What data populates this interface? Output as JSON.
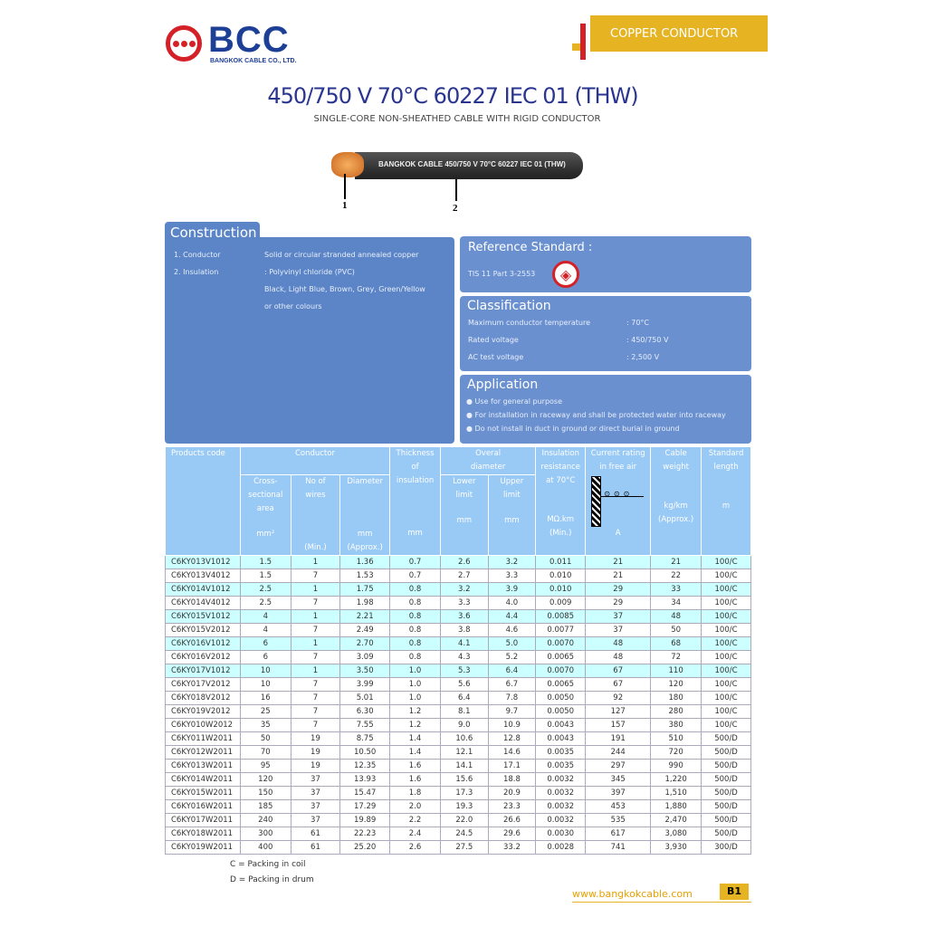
{
  "header": {
    "logo_text": "BCC",
    "logo_sub": "BANGKOK CABLE CO., LTD.",
    "category": "COPPER CONDUCTOR"
  },
  "title": "450/750 V 70°C 60227 IEC 01 (THW)",
  "subtitle": "SINGLE-CORE NON-SHEATHED CABLE WITH RIGID CONDUCTOR",
  "cable_print": "BANGKOK CABLE  450/750 V  70°C  60227 IEC 01 (THW)",
  "callouts": [
    "1",
    "2"
  ],
  "construction": {
    "title": "Construction",
    "items": [
      {
        "label": "1. Conductor",
        "value": "Solid or circular stranded annealed copper"
      },
      {
        "label": "2. Insulation",
        "value": ": Polyvinyl chloride (PVC)"
      },
      {
        "label": "",
        "value": "Black, Light Blue, Brown, Grey, Green/Yellow"
      },
      {
        "label": "",
        "value": "or other colours"
      }
    ]
  },
  "reference": {
    "title": "Reference Standard :",
    "value": "TIS 11 Part 3-2553"
  },
  "classification": {
    "title": "Classification",
    "items": [
      {
        "label": "Maximum conductor temperature",
        "value": ": 70°C"
      },
      {
        "label": "Rated voltage",
        "value": ": 450/750 V"
      },
      {
        "label": "AC test voltage",
        "value": ": 2,500 V"
      }
    ]
  },
  "application": {
    "title": "Application",
    "items": [
      "Use for general purpose",
      "For installation in raceway and shall be protected water into raceway",
      "Do not install in duct in ground or direct burial in ground"
    ]
  },
  "table": {
    "headers": {
      "code": "Products code",
      "conductor": "Conductor",
      "area": "Cross- sectional area",
      "area_unit": "mm²",
      "wires": "No of wires",
      "wires_unit": "(Min.)",
      "diameter": "Diameter",
      "diameter_unit": "mm (Approx.)",
      "thickness": "Thickness of insulation",
      "thickness_unit": "mm",
      "overall": "Overal diameter",
      "lower": "Lower limit",
      "upper": "Upper limit",
      "od_unit": "mm",
      "resistance": "Insulation resistance at 70°C",
      "resistance_unit": "MΩ.km (Min.)",
      "current": "Current rating in free air",
      "current_unit": "A",
      "weight": "Cable weight",
      "weight_unit": "kg/km (Approx.)",
      "length": "Standard length",
      "length_unit": "m"
    },
    "rows": [
      [
        "C6KY013V1012",
        "1.5",
        "1",
        "1.36",
        "0.7",
        "2.6",
        "3.2",
        "0.011",
        "21",
        "21",
        "100/C"
      ],
      [
        "C6KY013V4012",
        "1.5",
        "7",
        "1.53",
        "0.7",
        "2.7",
        "3.3",
        "0.010",
        "21",
        "22",
        "100/C"
      ],
      [
        "C6KY014V1012",
        "2.5",
        "1",
        "1.75",
        "0.8",
        "3.2",
        "3.9",
        "0.010",
        "29",
        "33",
        "100/C"
      ],
      [
        "C6KY014V4012",
        "2.5",
        "7",
        "1.98",
        "0.8",
        "3.3",
        "4.0",
        "0.009",
        "29",
        "34",
        "100/C"
      ],
      [
        "C6KY015V1012",
        "4",
        "1",
        "2.21",
        "0.8",
        "3.6",
        "4.4",
        "0.0085",
        "37",
        "48",
        "100/C"
      ],
      [
        "C6KY015V2012",
        "4",
        "7",
        "2.49",
        "0.8",
        "3.8",
        "4.6",
        "0.0077",
        "37",
        "50",
        "100/C"
      ],
      [
        "C6KY016V1012",
        "6",
        "1",
        "2.70",
        "0.8",
        "4.1",
        "5.0",
        "0.0070",
        "48",
        "68",
        "100/C"
      ],
      [
        "C6KY016V2012",
        "6",
        "7",
        "3.09",
        "0.8",
        "4.3",
        "5.2",
        "0.0065",
        "48",
        "72",
        "100/C"
      ],
      [
        "C6KY017V1012",
        "10",
        "1",
        "3.50",
        "1.0",
        "5.3",
        "6.4",
        "0.0070",
        "67",
        "110",
        "100/C"
      ],
      [
        "C6KY017V2012",
        "10",
        "7",
        "3.99",
        "1.0",
        "5.6",
        "6.7",
        "0.0065",
        "67",
        "120",
        "100/C"
      ],
      [
        "C6KY018V2012",
        "16",
        "7",
        "5.01",
        "1.0",
        "6.4",
        "7.8",
        "0.0050",
        "92",
        "180",
        "100/C"
      ],
      [
        "C6KY019V2012",
        "25",
        "7",
        "6.30",
        "1.2",
        "8.1",
        "9.7",
        "0.0050",
        "127",
        "280",
        "100/C"
      ],
      [
        "C6KY010W2012",
        "35",
        "7",
        "7.55",
        "1.2",
        "9.0",
        "10.9",
        "0.0043",
        "157",
        "380",
        "100/C"
      ],
      [
        "C6KY011W2011",
        "50",
        "19",
        "8.75",
        "1.4",
        "10.6",
        "12.8",
        "0.0043",
        "191",
        "510",
        "500/D"
      ],
      [
        "C6KY012W2011",
        "70",
        "19",
        "10.50",
        "1.4",
        "12.1",
        "14.6",
        "0.0035",
        "244",
        "720",
        "500/D"
      ],
      [
        "C6KY013W2011",
        "95",
        "19",
        "12.35",
        "1.6",
        "14.1",
        "17.1",
        "0.0035",
        "297",
        "990",
        "500/D"
      ],
      [
        "C6KY014W2011",
        "120",
        "37",
        "13.93",
        "1.6",
        "15.6",
        "18.8",
        "0.0032",
        "345",
        "1,220",
        "500/D"
      ],
      [
        "C6KY015W2011",
        "150",
        "37",
        "15.47",
        "1.8",
        "17.3",
        "20.9",
        "0.0032",
        "397",
        "1,510",
        "500/D"
      ],
      [
        "C6KY016W2011",
        "185",
        "37",
        "17.29",
        "2.0",
        "19.3",
        "23.3",
        "0.0032",
        "453",
        "1,880",
        "500/D"
      ],
      [
        "C6KY017W2011",
        "240",
        "37",
        "19.89",
        "2.2",
        "22.0",
        "26.6",
        "0.0032",
        "535",
        "2,470",
        "500/D"
      ],
      [
        "C6KY018W2011",
        "300",
        "61",
        "22.23",
        "2.4",
        "24.5",
        "29.6",
        "0.0030",
        "617",
        "3,080",
        "500/D"
      ],
      [
        "C6KY019W2011",
        "400",
        "61",
        "25.20",
        "2.6",
        "27.5",
        "33.2",
        "0.0028",
        "741",
        "3,930",
        "300/D"
      ]
    ]
  },
  "notes": [
    "C =  Packing in coil",
    "D =  Packing in drum"
  ],
  "footer": {
    "url": "www.bangkokcable.com",
    "page": "B1"
  },
  "colors": {
    "panel": "#5b85c6",
    "header": "#99c9f5",
    "highlight_row": "#ccffff",
    "accent": "#e6b422",
    "brand": "#1d3f95"
  }
}
